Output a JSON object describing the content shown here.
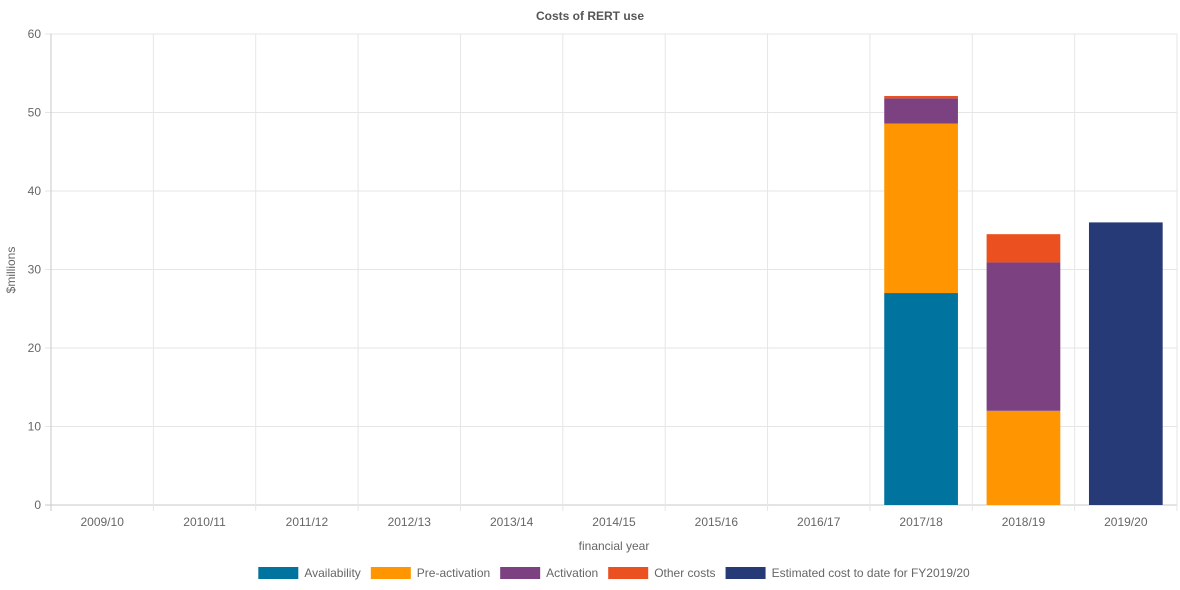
{
  "chart_data": {
    "type": "bar",
    "stacked": true,
    "title": "Costs of RERT use",
    "xlabel": "financial year",
    "ylabel": "$millions",
    "ylim": [
      0,
      60
    ],
    "yticks": [
      "0",
      "10",
      "20",
      "30",
      "40",
      "50",
      "60"
    ],
    "grid": true,
    "legend_position": "bottom",
    "categories": [
      "2009/10",
      "2010/11",
      "2011/12",
      "2012/13",
      "2013/14",
      "2014/15",
      "2015/16",
      "2016/17",
      "2017/18",
      "2018/19",
      "2019/20"
    ],
    "series": [
      {
        "name": "Availability",
        "color": "#00739e",
        "values": [
          0,
          0,
          0,
          0,
          0,
          0,
          0,
          0,
          27.0,
          0,
          0
        ]
      },
      {
        "name": "Pre-activation",
        "color": "#ff9500",
        "values": [
          0,
          0,
          0,
          0,
          0,
          0,
          0,
          0,
          21.6,
          12.0,
          0
        ]
      },
      {
        "name": "Activation",
        "color": "#7b4180",
        "values": [
          0,
          0,
          0,
          0,
          0,
          0,
          0,
          0,
          3.2,
          18.9,
          0
        ]
      },
      {
        "name": "Other costs",
        "color": "#ea5020",
        "values": [
          0,
          0,
          0,
          0,
          0,
          0,
          0,
          0,
          0.3,
          3.6,
          0
        ]
      },
      {
        "name": "Estimated cost to date for FY2019/20",
        "color": "#263a78",
        "values": [
          0,
          0,
          0,
          0,
          0,
          0,
          0,
          0,
          0,
          0,
          36.0
        ]
      }
    ]
  }
}
